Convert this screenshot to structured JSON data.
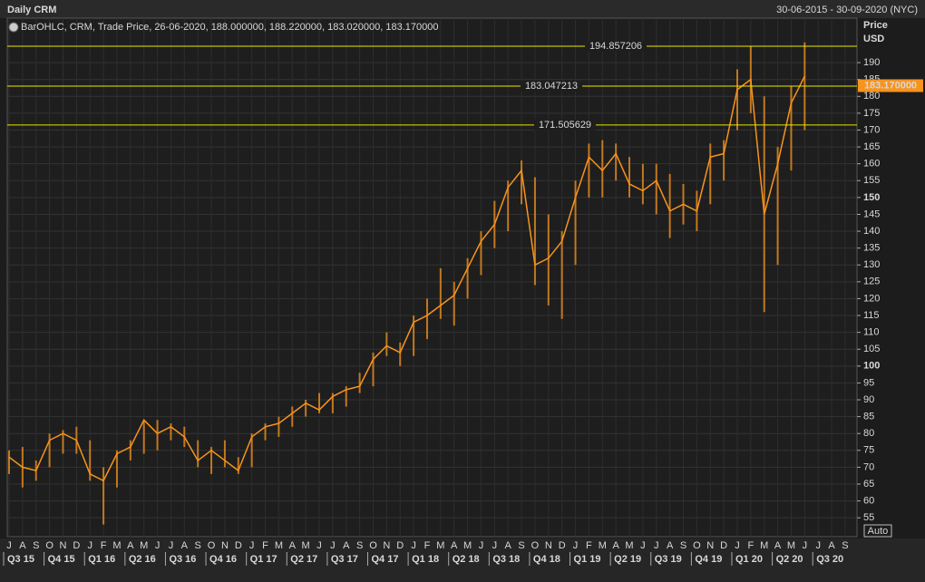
{
  "chart_data": {
    "type": "range-line",
    "title": "Daily CRM",
    "date_range": "30-06-2015 - 30-09-2020 (NYC)",
    "legend": "BarOHLC, CRM, Trade Price, 26-06-2020, 188.000000, 188.220000, 183.020000, 183.170000",
    "y_axis_label": "Price",
    "y_axis_unit": "USD",
    "scale_mode": "Auto",
    "color": "#f7941d",
    "level_color": "#e6e600",
    "categories": [
      "J",
      "A",
      "S",
      "O",
      "N",
      "D",
      "J",
      "F",
      "M",
      "A",
      "M",
      "J",
      "J",
      "A",
      "S",
      "O",
      "N",
      "D",
      "J",
      "F",
      "M",
      "A",
      "M",
      "J",
      "J",
      "A",
      "S",
      "O",
      "N",
      "D",
      "J",
      "F",
      "M",
      "A",
      "M",
      "J",
      "J",
      "A",
      "S",
      "O",
      "N",
      "D",
      "J",
      "F",
      "M",
      "A",
      "M",
      "J",
      "J",
      "A",
      "S",
      "O",
      "N",
      "D",
      "J",
      "F",
      "M",
      "A",
      "M",
      "J",
      "J",
      "A",
      "S"
    ],
    "quarters": [
      "Q3 15",
      "Q4 15",
      "Q1 16",
      "Q2 16",
      "Q3 16",
      "Q4 16",
      "Q1 17",
      "Q2 17",
      "Q3 17",
      "Q4 17",
      "Q1 18",
      "Q2 18",
      "Q3 18",
      "Q4 18",
      "Q1 19",
      "Q2 19",
      "Q3 19",
      "Q4 19",
      "Q1 20",
      "Q2 20",
      "Q3 20"
    ],
    "series": [
      {
        "name": "Low",
        "values": [
          68,
          64,
          66,
          70,
          74,
          74,
          66,
          53,
          64,
          72,
          74,
          75,
          78,
          76,
          70,
          68,
          70,
          68,
          70,
          78,
          79,
          82,
          85,
          86,
          86,
          88,
          92,
          94,
          103,
          100,
          103,
          108,
          114,
          112,
          120,
          127,
          135,
          140,
          148,
          124,
          118,
          114,
          130,
          150,
          150,
          155,
          150,
          148,
          145,
          138,
          142,
          140,
          148,
          155,
          170,
          175,
          116,
          130,
          158,
          170,
          null,
          null,
          null
        ]
      },
      {
        "name": "High",
        "values": [
          75,
          76,
          72,
          80,
          81,
          82,
          78,
          70,
          75,
          78,
          84,
          84,
          83,
          82,
          78,
          76,
          78,
          73,
          80,
          83,
          85,
          88,
          90,
          92,
          92,
          94,
          98,
          104,
          110,
          107,
          115,
          120,
          129,
          125,
          132,
          140,
          149,
          155,
          161,
          156,
          145,
          140,
          155,
          166,
          167,
          166,
          162,
          160,
          160,
          157,
          154,
          152,
          166,
          167,
          188,
          195,
          180,
          165,
          183,
          196,
          null,
          null,
          null
        ]
      },
      {
        "name": "Close",
        "values": [
          73,
          70,
          69,
          78,
          80,
          78,
          68,
          66,
          74,
          76,
          84,
          80,
          82,
          79,
          72,
          75,
          72,
          69,
          79,
          82,
          83,
          86,
          89,
          87,
          91,
          93,
          94,
          102,
          106,
          104,
          113,
          115,
          118,
          121,
          129,
          137,
          142,
          153,
          158,
          130,
          132,
          137,
          150,
          162,
          158,
          163,
          154,
          152,
          155,
          146,
          148,
          146,
          162,
          163,
          182,
          185,
          145,
          160,
          178,
          186,
          null,
          null,
          null
        ]
      }
    ],
    "last_price": 183.17,
    "last_price_label": "183.170000",
    "levels": [
      194.857206,
      183.047213,
      171.505629
    ],
    "ylim": [
      49.4,
      203.2
    ],
    "yticks": [
      55,
      60,
      65,
      70,
      75,
      80,
      85,
      90,
      95,
      100,
      105,
      110,
      115,
      120,
      125,
      130,
      135,
      140,
      145,
      150,
      155,
      160,
      165,
      170,
      175,
      180,
      185,
      190
    ],
    "grid": true
  }
}
